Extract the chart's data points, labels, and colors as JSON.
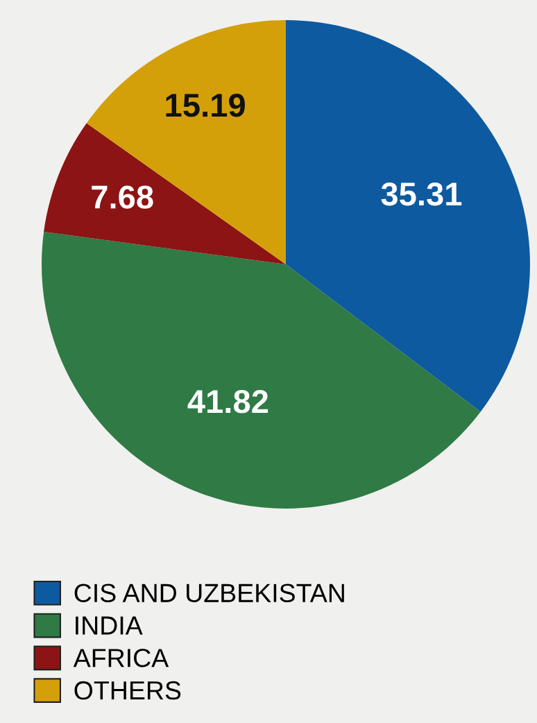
{
  "chart_data": {
    "type": "pie",
    "categories": [
      "CIS AND UZBEKISTAN",
      "INDIA",
      "AFRICA",
      "OTHERS"
    ],
    "values": [
      35.31,
      41.82,
      7.68,
      15.19
    ],
    "colors": [
      "#0d5aa0",
      "#2f7a45",
      "#8c1414",
      "#d4a00a"
    ],
    "data_labels": true,
    "legend": "bottom left"
  }
}
